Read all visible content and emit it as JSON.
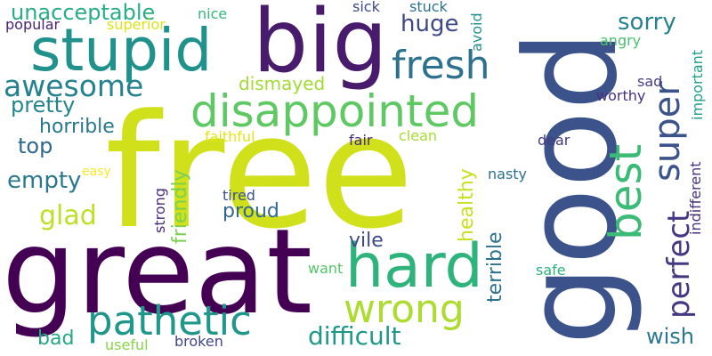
{
  "words": [
    {
      "text": "free",
      "color": "#d0e11c"
    },
    {
      "text": "great",
      "color": "#440154"
    },
    {
      "text": "good",
      "color": "#3b528b"
    },
    {
      "text": "big",
      "color": "#481b6d"
    },
    {
      "text": "stupid",
      "color": "#21918c"
    },
    {
      "text": "hard",
      "color": "#2eb37c"
    },
    {
      "text": "disappointed",
      "color": "#5ec962"
    },
    {
      "text": "pathetic",
      "color": "#1f988b"
    },
    {
      "text": "fresh",
      "color": "#2c728e"
    },
    {
      "text": "wrong",
      "color": "#addc30"
    },
    {
      "text": "best",
      "color": "#3bbb75"
    },
    {
      "text": "super",
      "color": "#3b528b"
    },
    {
      "text": "awesome",
      "color": "#26828e"
    },
    {
      "text": "perfect",
      "color": "#453781"
    },
    {
      "text": "difficult",
      "color": "#1f988b"
    },
    {
      "text": "unacceptable",
      "color": "#28ae80"
    },
    {
      "text": "glad",
      "color": "#bddf26"
    },
    {
      "text": "pretty",
      "color": "#25858e"
    },
    {
      "text": "horrible",
      "color": "#2a788e"
    },
    {
      "text": "empty",
      "color": "#2a788e"
    },
    {
      "text": "top",
      "color": "#31688e"
    },
    {
      "text": "sorry",
      "color": "#26828e"
    },
    {
      "text": "huge",
      "color": "#3e4989"
    },
    {
      "text": "dismayed",
      "color": "#a2da37"
    },
    {
      "text": "proud",
      "color": "#31688e"
    },
    {
      "text": "friendly",
      "color": "#7ad151"
    },
    {
      "text": "terrible",
      "color": "#2c728e"
    },
    {
      "text": "healthy",
      "color": "#c8e020"
    },
    {
      "text": "vile",
      "color": "#3e4989"
    },
    {
      "text": "bad",
      "color": "#22a884"
    },
    {
      "text": "wish",
      "color": "#2a788e"
    },
    {
      "text": "strong",
      "color": "#472a7a"
    },
    {
      "text": "indifferent",
      "color": "#46327e"
    },
    {
      "text": "important",
      "color": "#1f9e89"
    },
    {
      "text": "broken",
      "color": "#404688"
    },
    {
      "text": "useful",
      "color": "#86d549"
    },
    {
      "text": "popular",
      "color": "#482475"
    },
    {
      "text": "superior",
      "color": "#dde318"
    },
    {
      "text": "nice",
      "color": "#35b779"
    },
    {
      "text": "sick",
      "color": "#3e4989"
    },
    {
      "text": "stuck",
      "color": "#2c728e"
    },
    {
      "text": "avoid",
      "color": "#21918c"
    },
    {
      "text": "angry",
      "color": "#4ac16d"
    },
    {
      "text": "sad",
      "color": "#433e85"
    },
    {
      "text": "worthy",
      "color": "#46337f"
    },
    {
      "text": "faithful",
      "color": "#e5e419"
    },
    {
      "text": "fair",
      "color": "#472d7b"
    },
    {
      "text": "clean",
      "color": "#a8db34"
    },
    {
      "text": "dear",
      "color": "#443a83"
    },
    {
      "text": "easy",
      "color": "#fde725"
    },
    {
      "text": "nasty",
      "color": "#2d708e"
    },
    {
      "text": "tired",
      "color": "#3b528b"
    },
    {
      "text": "want",
      "color": "#54c568"
    },
    {
      "text": "safe",
      "color": "#2db27d"
    }
  ]
}
